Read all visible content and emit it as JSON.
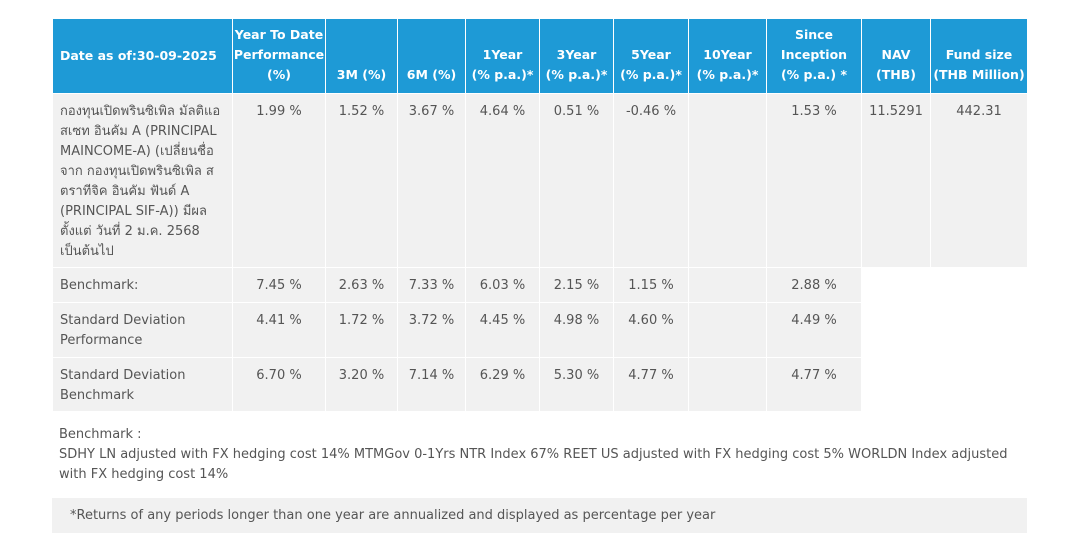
{
  "table": {
    "header": [
      "Date as of:30-09-2025",
      [
        "Year To Date",
        "Performance",
        "(%)"
      ],
      [
        "3M  (%)"
      ],
      [
        "6M (%)"
      ],
      [
        "1Year",
        "(% p.a.)*"
      ],
      [
        "3Year",
        "(% p.a.)*"
      ],
      [
        "5Year",
        "(% p.a.)*"
      ],
      [
        "10Year",
        "(% p.a.)*"
      ],
      [
        "Since",
        "Inception",
        "(% p.a.) *"
      ],
      [
        "NAV",
        "(THB)"
      ],
      [
        "Fund size",
        "(THB Million)"
      ]
    ],
    "rows": [
      [
        "กองทุนเปิดพรินซิเพิล มัลติแอสเซท อินคัม A (PRINCIPAL MAINCOME-A) (เปลี่ยนชื่อจาก กองทุนเปิดพรินซิเพิล สตราทีจิค อินคัม ฟันด์ A (PRINCIPAL SIF-A)) มีผลตั้งแต่ วันที่ 2 ม.ค. 2568 เป็นต้นไป",
        "1.99 %",
        "1.52 %",
        "3.67 %",
        "4.64 %",
        "0.51 %",
        "-0.46 %",
        null,
        "1.53 %",
        "11.5291",
        "442.31"
      ],
      [
        "Benchmark:",
        "7.45 %",
        "2.63 %",
        "7.33 %",
        "6.03 %",
        "2.15 %",
        "1.15 %",
        null,
        "2.88 %"
      ],
      [
        "Standard Deviation Performance",
        "4.41 %",
        "1.72 %",
        "3.72 %",
        "4.45 %",
        "4.98 %",
        "4.60 %",
        null,
        "4.49 %"
      ],
      [
        "Standard Deviation Benchmark",
        "6.70 %",
        "3.20 %",
        "7.14 %",
        "6.29 %",
        "5.30 %",
        "4.77 %",
        null,
        "4.77 %"
      ]
    ]
  },
  "notes": {
    "label": "Benchmark :",
    "text": "SDHY LN adjusted with FX hedging cost 14% MTMGov 0-1Yrs NTR Index 67% REET US adjusted with FX hedging cost 5% WORLDN Index adjusted with FX hedging cost 14%"
  },
  "footnote": "*Returns of any periods longer than one year are annualized and displayed as percentage per year"
}
